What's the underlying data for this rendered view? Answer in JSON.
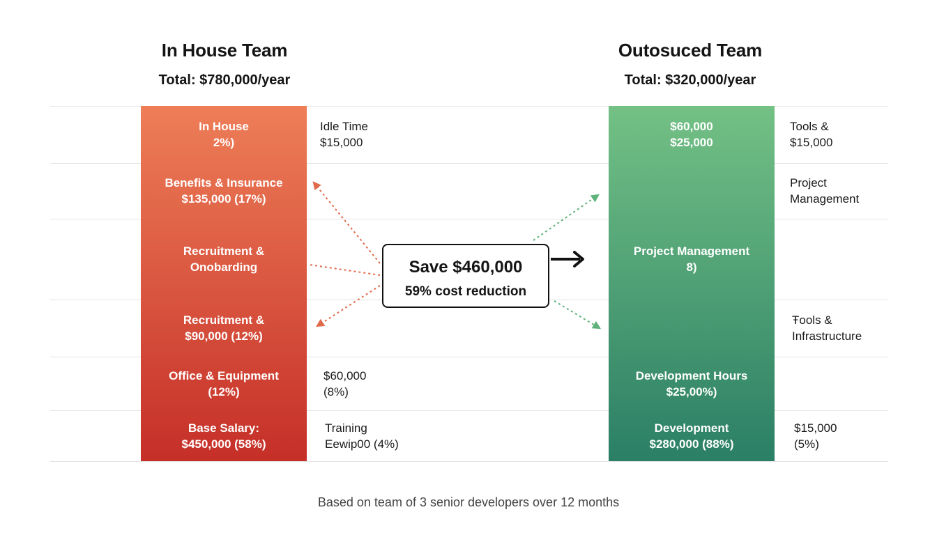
{
  "chart_data": {
    "type": "stacked-bar",
    "left": {
      "title": "In House Team",
      "subtitle": "Total: $780,000/year",
      "colors": {
        "top": "#ee7e58",
        "bottom": "#c52f28"
      },
      "segments": [
        {
          "name": "seg-in-house-top",
          "lines": [
            "In House",
            "2%)"
          ],
          "outside": [
            "Idle Time",
            "$15,000"
          ]
        },
        {
          "name": "seg-benefits-insurance",
          "lines": [
            "Benefits & Insurance",
            "$135,000 (17%)"
          ],
          "outside": []
        },
        {
          "name": "seg-recruitment-onboarding",
          "lines": [
            "Recruitment &",
            "Onobarding"
          ],
          "outside": []
        },
        {
          "name": "seg-recruitment-90000",
          "lines": [
            "Recruitment &",
            "$90,000 (12%)"
          ],
          "outside": []
        },
        {
          "name": "seg-office-equipment",
          "lines": [
            "Office & Equipment",
            "(12%)"
          ],
          "outside": [
            "$60,000",
            "(8%)"
          ]
        },
        {
          "name": "seg-base-salary",
          "lines": [
            "Base Salary:",
            "$450,000 (58%)"
          ],
          "outside": [
            "Training",
            "Eewip00 (4%)"
          ]
        }
      ]
    },
    "right": {
      "title": "Outosuced Team",
      "subtitle": "Total: $320,000/year",
      "colors": {
        "top": "#74c185",
        "bottom": "#2a7f65"
      },
      "segments": [
        {
          "name": "seg-top-60000",
          "lines": [
            "$60,000",
            "$25,000"
          ],
          "outside": [
            "Tools &",
            "$15,000"
          ]
        },
        {
          "name": "seg-unlabeled-1",
          "lines": [],
          "outside": [
            "Project",
            "Management"
          ]
        },
        {
          "name": "seg-project-management",
          "lines": [
            "Project Management",
            "8)"
          ],
          "outside": []
        },
        {
          "name": "seg-unlabeled-2",
          "lines": [],
          "outside": [
            "Ŧools &",
            "Infrastructure"
          ]
        },
        {
          "name": "seg-development-hours",
          "lines": [
            "Development Hours",
            "$25,00%)"
          ],
          "outside": []
        },
        {
          "name": "seg-development",
          "lines": [
            "Development",
            "$280,000 (88%)"
          ],
          "outside": [
            "$15,000",
            "(5%)"
          ]
        }
      ]
    },
    "callout": {
      "main": "Save $460,000",
      "sub": "59% cost reduction"
    },
    "footnote": "Based on team of 3 senior developers over 12 months",
    "arrow_colors": {
      "left": "#e06a4a",
      "right": "#5fb27a",
      "center": "#111111"
    }
  }
}
